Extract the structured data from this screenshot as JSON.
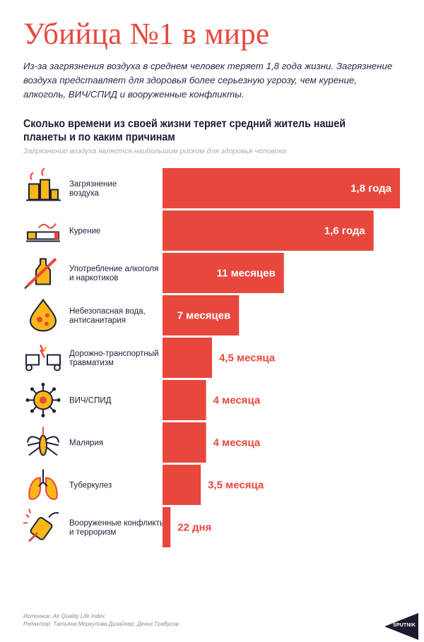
{
  "title": "Убийца №1 в мире",
  "intro": "Из-за загрязнения воздуха в среднем человек теряет 1,8 года жизни. Загрязнение воздуха представляет для здоровья более серьезную угрозу, чем курение, алкоголь, ВИЧ/СПИД и вооруженные конфликты.",
  "colors": {
    "accent": "#e8473d",
    "icon_fill": "#f7b718",
    "icon_stroke": "#1f1f3a"
  },
  "chart_data": {
    "type": "bar",
    "orientation": "horizontal",
    "title": "Сколько времени из своей жизни теряет средний житель нашей планеты и по каким причинам",
    "subtitle": "Загрязнение воздуха является наибольшим риском для здоровья человека",
    "unit": "years",
    "xlim": [
      0,
      1.8
    ],
    "categories": [
      {
        "label": [
          "Загрязнение",
          "воздуха"
        ],
        "icon": "factory-smoke-icon"
      },
      {
        "label": [
          "Курение"
        ],
        "icon": "cigarette-icon"
      },
      {
        "label": [
          "Употребление алкоголя",
          "и наркотиков"
        ],
        "icon": "bottle-syringe-icon"
      },
      {
        "label": [
          "Небезопасная вода,",
          "антисанитария"
        ],
        "icon": "dirty-water-drop-icon"
      },
      {
        "label": [
          "Дорожно-транспортный",
          "травматизм"
        ],
        "icon": "car-crash-icon"
      },
      {
        "label": [
          "ВИЧ/СПИД"
        ],
        "icon": "virus-icon"
      },
      {
        "label": [
          "Малярия"
        ],
        "icon": "mosquito-icon"
      },
      {
        "label": [
          "Туберкулез"
        ],
        "icon": "lungs-icon"
      },
      {
        "label": [
          "Вооруженные конфликты",
          "и терроризм"
        ],
        "icon": "bomb-icon"
      }
    ],
    "values": [
      1.8,
      1.6,
      0.92,
      0.58,
      0.375,
      0.33,
      0.33,
      0.29,
      0.06
    ],
    "value_labels": [
      "1,8 года",
      "1,6 года",
      "11 месяцев",
      "7 месяцев",
      "4,5 месяца",
      "4 месяца",
      "4 месяца",
      "3,5 месяца",
      "22 дня"
    ]
  },
  "footer": {
    "source": "Источник:  Air Quality Life Index",
    "credits": "Редактор: Татьяна Меркулова   Дизайнер: Денис Грабусов"
  },
  "logo_text": "SPUTNIK"
}
